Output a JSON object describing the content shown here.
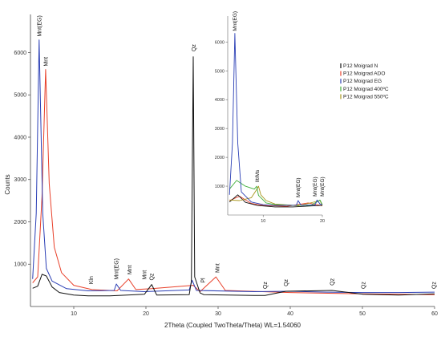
{
  "chart_data": {
    "type": "line",
    "xlabel": "2Theta (Coupled TwoTheta/Theta) WL=1.54060",
    "ylabel": "Counts",
    "xlim": [
      4,
      60
    ],
    "ylim": [
      0,
      6900
    ],
    "x_ticks": [
      "10",
      "20",
      "30",
      "40",
      "50",
      "60"
    ],
    "y_ticks": [
      "1000",
      "2000",
      "3000",
      "4000",
      "5000",
      "6000"
    ],
    "grid": false,
    "series": [
      {
        "name": "P12 Moigrad N",
        "color": "#111111",
        "points": [
          [
            4.3,
            430
          ],
          [
            5,
            480
          ],
          [
            5.6,
            760
          ],
          [
            6.2,
            720
          ],
          [
            7,
            460
          ],
          [
            8,
            330
          ],
          [
            10,
            270
          ],
          [
            12,
            250
          ],
          [
            15,
            250
          ],
          [
            19.8,
            290
          ],
          [
            20.8,
            520
          ],
          [
            21.5,
            270
          ],
          [
            26,
            280
          ],
          [
            26.3,
            600
          ],
          [
            26.55,
            5900
          ],
          [
            26.75,
            700
          ],
          [
            27.5,
            320
          ],
          [
            28,
            280
          ],
          [
            35,
            260
          ],
          [
            36.5,
            260
          ],
          [
            39.4,
            360
          ],
          [
            45.8,
            380
          ],
          [
            50.1,
            290
          ],
          [
            55,
            270
          ],
          [
            59.9,
            300
          ],
          [
            60,
            300
          ]
        ]
      },
      {
        "name": "P12 Moigrad ADO",
        "color": "#e8402a",
        "points": [
          [
            4.3,
            560
          ],
          [
            5,
            700
          ],
          [
            5.6,
            2600
          ],
          [
            6.1,
            5600
          ],
          [
            6.6,
            2900
          ],
          [
            7.3,
            1400
          ],
          [
            8.3,
            800
          ],
          [
            10,
            500
          ],
          [
            12.5,
            400
          ],
          [
            16,
            370
          ],
          [
            17.6,
            650
          ],
          [
            18.6,
            400
          ],
          [
            20.8,
            420
          ],
          [
            26.55,
            500
          ],
          [
            27.5,
            350
          ],
          [
            29.7,
            700
          ],
          [
            31,
            380
          ],
          [
            40,
            330
          ],
          [
            50,
            300
          ],
          [
            59.9,
            280
          ],
          [
            60,
            280
          ]
        ]
      },
      {
        "name": "P12 Moigrad EG",
        "color": "#2b3fb5",
        "points": [
          [
            4.3,
            650
          ],
          [
            4.8,
            2200
          ],
          [
            5.2,
            6300
          ],
          [
            5.7,
            2200
          ],
          [
            6.2,
            900
          ],
          [
            7,
            600
          ],
          [
            9,
            420
          ],
          [
            12,
            370
          ],
          [
            15.6,
            380
          ],
          [
            15.9,
            530
          ],
          [
            16.5,
            380
          ],
          [
            19.8,
            350
          ],
          [
            26,
            390
          ],
          [
            26.4,
            620
          ],
          [
            27,
            380
          ],
          [
            35,
            350
          ],
          [
            40,
            360
          ],
          [
            45,
            340
          ],
          [
            50,
            330
          ],
          [
            55,
            330
          ],
          [
            59.9,
            340
          ],
          [
            60,
            340
          ]
        ]
      }
    ],
    "annotations": [
      {
        "label": "Mnt(EG)",
        "x": 5.2,
        "y": 6300
      },
      {
        "label": "Mnt",
        "x": 6.1,
        "y": 5600
      },
      {
        "label": "Kln",
        "x": 12.4,
        "y": 450
      },
      {
        "label": "Mnt(EG)",
        "x": 15.9,
        "y": 560
      },
      {
        "label": "Mnt",
        "x": 17.7,
        "y": 680
      },
      {
        "label": "Mnt",
        "x": 19.8,
        "y": 560
      },
      {
        "label": "Qz",
        "x": 20.8,
        "y": 540
      },
      {
        "label": "Qz",
        "x": 26.6,
        "y": 5950
      },
      {
        "label": "Pl",
        "x": 27.9,
        "y": 480
      },
      {
        "label": "Mnt",
        "x": 29.9,
        "y": 720
      },
      {
        "label": "Qz",
        "x": 36.5,
        "y": 340
      },
      {
        "label": "Qz",
        "x": 39.4,
        "y": 400
      },
      {
        "label": "Qz",
        "x": 45.8,
        "y": 420
      },
      {
        "label": "Qz",
        "x": 50.1,
        "y": 340
      },
      {
        "label": "Qz",
        "x": 59.9,
        "y": 340
      }
    ],
    "inset": {
      "xlim": [
        4,
        20
      ],
      "ylim": [
        0,
        6900
      ],
      "x_ticks": [
        "10",
        "20"
      ],
      "y_ticks": [
        "1000",
        "2000",
        "3000",
        "4000",
        "5000",
        "6000"
      ],
      "series": [
        {
          "name": "P12 Moigrad N",
          "color": "#111111",
          "points": [
            [
              4.3,
              450
            ],
            [
              5.7,
              700
            ],
            [
              7,
              440
            ],
            [
              9,
              330
            ],
            [
              12,
              280
            ],
            [
              15,
              280
            ],
            [
              19.8,
              330
            ],
            [
              20,
              330
            ]
          ]
        },
        {
          "name": "P12 Moigrad ADO",
          "color": "#e8402a",
          "points": [
            [
              4.3,
              500
            ],
            [
              6,
              650
            ],
            [
              8,
              400
            ],
            [
              10,
              330
            ],
            [
              14,
              300
            ],
            [
              17.6,
              420
            ],
            [
              20,
              320
            ]
          ]
        },
        {
          "name": "P12 Moigrad EG",
          "color": "#2b3fb5",
          "points": [
            [
              4.3,
              700
            ],
            [
              4.8,
              2500
            ],
            [
              5.2,
              6300
            ],
            [
              5.7,
              2500
            ],
            [
              6.3,
              800
            ],
            [
              8,
              450
            ],
            [
              10,
              360
            ],
            [
              12,
              330
            ],
            [
              15.6,
              340
            ],
            [
              15.9,
              500
            ],
            [
              16.4,
              340
            ],
            [
              18.8,
              350
            ],
            [
              19.1,
              520
            ],
            [
              19.6,
              380
            ],
            [
              20,
              360
            ]
          ]
        },
        {
          "name": "P12 Moigrad 400ºC",
          "color": "#3fae3a",
          "points": [
            [
              4.3,
              900
            ],
            [
              5.5,
              1200
            ],
            [
              7,
              1000
            ],
            [
              8.5,
              900
            ],
            [
              8.9,
              1000
            ],
            [
              9.2,
              680
            ],
            [
              10.5,
              420
            ],
            [
              12,
              360
            ],
            [
              15,
              340
            ],
            [
              18,
              330
            ],
            [
              19.6,
              520
            ],
            [
              20,
              360
            ]
          ]
        },
        {
          "name": "P12 Moigrad 550ºC",
          "color": "#a8951c",
          "points": [
            [
              4.3,
              520
            ],
            [
              6,
              500
            ],
            [
              8,
              600
            ],
            [
              8.8,
              850
            ],
            [
              9.2,
              1000
            ],
            [
              9.6,
              700
            ],
            [
              10.5,
              500
            ],
            [
              12,
              380
            ],
            [
              16,
              320
            ],
            [
              19.6,
              500
            ],
            [
              20,
              330
            ]
          ]
        }
      ],
      "annotations": [
        {
          "label": "Mnt(EG)",
          "x": 5.2,
          "y": 6300
        },
        {
          "label": "Ilt/Ms",
          "x": 9.0,
          "y": 1050
        },
        {
          "label": "Mnt(EG)",
          "x": 15.9,
          "y": 530
        },
        {
          "label": "Mnt(EG)",
          "x": 19.1,
          "y": 560
        },
        {
          "label": "Mnt(EG)",
          "x": 19.8,
          "y": 560
        }
      ]
    },
    "legend": {
      "position": "top-right",
      "entries": [
        {
          "name": "P12 Moigrad N",
          "color": "#111111"
        },
        {
          "name": "P12 Moigrad ADO",
          "color": "#e8402a"
        },
        {
          "name": "P12 Moigrad EG",
          "color": "#2b3fb5"
        },
        {
          "name": "P12 Moigrad 400ºC",
          "color": "#3fae3a"
        },
        {
          "name": "P12 Moigrad 550ºC",
          "color": "#a8951c"
        }
      ]
    }
  }
}
